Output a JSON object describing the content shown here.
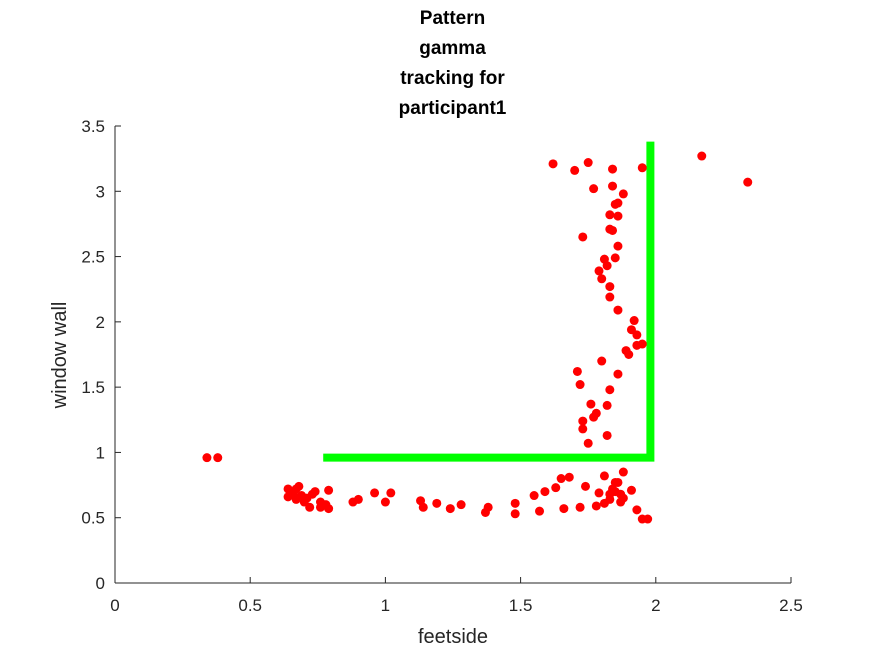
{
  "chart_data": {
    "type": "scatter",
    "title": [
      "Pattern",
      "gamma",
      "tracking for",
      "participant1"
    ],
    "xlabel": "feetside",
    "ylabel": "window wall",
    "xlim": [
      0,
      2.5
    ],
    "ylim": [
      0,
      3.5
    ],
    "xticks": [
      "0",
      "0.5",
      "1",
      "1.5",
      "2",
      "2.5"
    ],
    "yticks": [
      "0",
      "0.5",
      "1",
      "1.5",
      "2",
      "2.5",
      "3",
      "3.5"
    ],
    "grid": false,
    "legend": "none",
    "colors": {
      "points": "#ff0000",
      "pattern": "#00ff00",
      "axis": "#262626"
    },
    "pattern_line": {
      "x": [
        0.77,
        1.98,
        1.98
      ],
      "y": [
        0.96,
        0.96,
        3.38
      ]
    },
    "points": [
      [
        0.34,
        0.96
      ],
      [
        0.38,
        0.96
      ],
      [
        0.64,
        0.72
      ],
      [
        0.64,
        0.66
      ],
      [
        0.65,
        0.7
      ],
      [
        0.66,
        0.68
      ],
      [
        0.67,
        0.64
      ],
      [
        0.67,
        0.72
      ],
      [
        0.68,
        0.74
      ],
      [
        0.69,
        0.67
      ],
      [
        0.7,
        0.62
      ],
      [
        0.71,
        0.65
      ],
      [
        0.72,
        0.58
      ],
      [
        0.73,
        0.68
      ],
      [
        0.74,
        0.7
      ],
      [
        0.76,
        0.62
      ],
      [
        0.76,
        0.58
      ],
      [
        0.78,
        0.6
      ],
      [
        0.79,
        0.57
      ],
      [
        0.79,
        0.71
      ],
      [
        0.88,
        0.62
      ],
      [
        0.9,
        0.64
      ],
      [
        0.96,
        0.69
      ],
      [
        1.0,
        0.62
      ],
      [
        1.02,
        0.69
      ],
      [
        1.13,
        0.63
      ],
      [
        1.14,
        0.58
      ],
      [
        1.19,
        0.61
      ],
      [
        1.24,
        0.57
      ],
      [
        1.28,
        0.6
      ],
      [
        1.37,
        0.54
      ],
      [
        1.38,
        0.58
      ],
      [
        1.48,
        0.53
      ],
      [
        1.48,
        0.61
      ],
      [
        1.55,
        0.67
      ],
      [
        1.57,
        0.55
      ],
      [
        1.59,
        0.7
      ],
      [
        1.63,
        0.73
      ],
      [
        1.65,
        0.8
      ],
      [
        1.66,
        0.57
      ],
      [
        1.68,
        0.81
      ],
      [
        1.72,
        0.58
      ],
      [
        1.74,
        0.74
      ],
      [
        1.78,
        0.59
      ],
      [
        1.79,
        0.69
      ],
      [
        1.81,
        0.61
      ],
      [
        1.81,
        0.82
      ],
      [
        1.83,
        0.68
      ],
      [
        1.83,
        0.64
      ],
      [
        1.84,
        0.72
      ],
      [
        1.85,
        0.7
      ],
      [
        1.85,
        0.77
      ],
      [
        1.86,
        0.77
      ],
      [
        1.87,
        0.62
      ],
      [
        1.87,
        0.68
      ],
      [
        1.88,
        0.85
      ],
      [
        1.88,
        0.65
      ],
      [
        1.91,
        0.71
      ],
      [
        1.93,
        0.56
      ],
      [
        1.95,
        0.49
      ],
      [
        1.97,
        0.49
      ],
      [
        1.75,
        1.07
      ],
      [
        1.71,
        1.62
      ],
      [
        1.72,
        1.52
      ],
      [
        1.73,
        1.18
      ],
      [
        1.73,
        1.24
      ],
      [
        1.76,
        1.37
      ],
      [
        1.77,
        1.27
      ],
      [
        1.78,
        1.3
      ],
      [
        1.8,
        1.7
      ],
      [
        1.82,
        1.36
      ],
      [
        1.82,
        1.13
      ],
      [
        1.83,
        1.48
      ],
      [
        1.86,
        1.6
      ],
      [
        1.89,
        1.78
      ],
      [
        1.9,
        1.75
      ],
      [
        1.91,
        1.94
      ],
      [
        1.92,
        2.01
      ],
      [
        1.93,
        1.82
      ],
      [
        1.95,
        1.83
      ],
      [
        1.93,
        1.9
      ],
      [
        1.79,
        2.39
      ],
      [
        1.8,
        2.33
      ],
      [
        1.81,
        2.48
      ],
      [
        1.82,
        2.43
      ],
      [
        1.83,
        2.19
      ],
      [
        1.83,
        2.27
      ],
      [
        1.86,
        2.09
      ],
      [
        1.85,
        2.49
      ],
      [
        1.86,
        2.58
      ],
      [
        1.73,
        2.65
      ],
      [
        1.83,
        2.71
      ],
      [
        1.84,
        2.7
      ],
      [
        1.83,
        2.82
      ],
      [
        1.86,
        2.81
      ],
      [
        1.85,
        2.9
      ],
      [
        1.86,
        2.91
      ],
      [
        1.88,
        2.98
      ],
      [
        1.77,
        3.02
      ],
      [
        1.84,
        3.04
      ],
      [
        1.7,
        3.16
      ],
      [
        1.62,
        3.21
      ],
      [
        1.75,
        3.22
      ],
      [
        1.84,
        3.17
      ],
      [
        1.95,
        3.18
      ],
      [
        2.17,
        3.27
      ],
      [
        2.34,
        3.07
      ]
    ]
  }
}
